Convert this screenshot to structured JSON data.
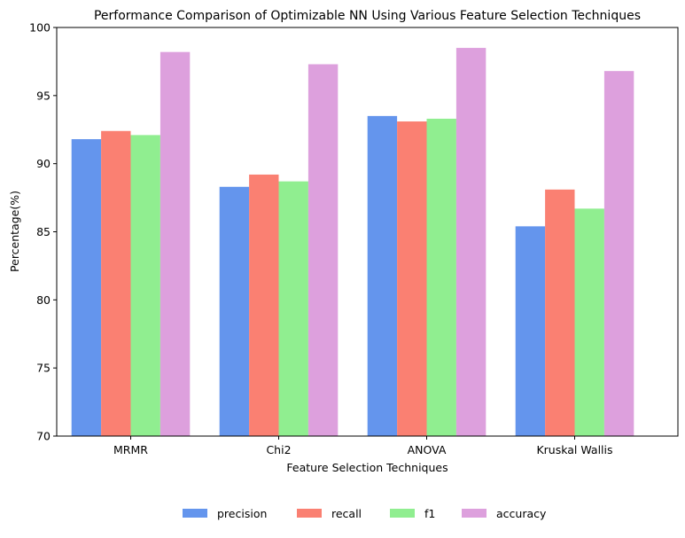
{
  "chart_data": {
    "type": "bar",
    "title": "Performance Comparison of Optimizable NN Using Various Feature Selection Techniques",
    "xlabel": "Feature Selection Techniques",
    "ylabel": "Percentage(%)",
    "categories": [
      "MRMR",
      "Chi2",
      "ANOVA",
      "Kruskal Wallis"
    ],
    "ylim": [
      70,
      100
    ],
    "yticks": [
      70,
      75,
      80,
      85,
      90,
      95,
      100
    ],
    "grid": false,
    "legend_position": "bottom-center",
    "series": [
      {
        "name": "precision",
        "color": "#6495ED",
        "values": [
          91.8,
          88.3,
          93.5,
          85.4
        ]
      },
      {
        "name": "recall",
        "color": "#FA8072",
        "values": [
          92.4,
          89.2,
          93.1,
          88.1
        ]
      },
      {
        "name": "f1",
        "color": "#90EE90",
        "values": [
          92.1,
          88.7,
          93.3,
          86.7
        ]
      },
      {
        "name": "accuracy",
        "color": "#DDA0DD",
        "values": [
          98.2,
          97.3,
          98.5,
          96.8
        ]
      }
    ]
  }
}
